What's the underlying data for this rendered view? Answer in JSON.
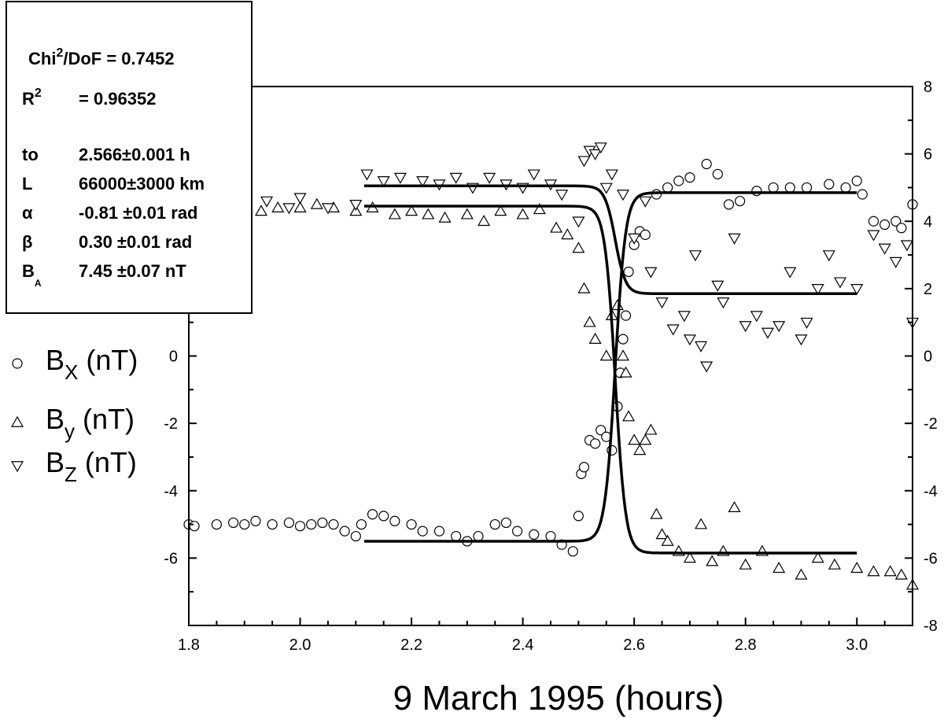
{
  "chart_data": {
    "type": "scatter",
    "xlabel": "9 March 1995 (hours)",
    "xlim": [
      1.8,
      3.1
    ],
    "ylim": [
      -8,
      8
    ],
    "x_ticks": [
      "1.8",
      "2.0",
      "2.2",
      "2.4",
      "2.6",
      "2.8",
      "3.0"
    ],
    "y_ticks": [
      "-8",
      "-6",
      "-4",
      "-2",
      "0",
      "2",
      "4",
      "6",
      "8"
    ],
    "legend": [
      {
        "symbol": "○",
        "base": "B",
        "sub": "X",
        "unit": "(nT)",
        "marker": "circle"
      },
      {
        "symbol": "△",
        "base": "B",
        "sub": "y",
        "unit": "(nT)",
        "marker": "triangle-up"
      },
      {
        "symbol": "▽",
        "base": "B",
        "sub": "Z",
        "unit": "(nT)",
        "marker": "triangle-down"
      }
    ],
    "stats": {
      "chi_label": "Chi",
      "chi_sup": "2",
      "chi_rest": "/DoF  = 0.7452",
      "r_label": "R",
      "r_sup": "2",
      "r_rest": "=  0.96352",
      "params": [
        {
          "name": "to",
          "value": "2.566±0.001 h"
        },
        {
          "name": "L",
          "value": "66000±3000  km"
        },
        {
          "name": "α",
          "value": "-0.81 ±0.01 rad"
        },
        {
          "name": "β",
          "value": "0.30  ±0.01 rad"
        },
        {
          "name": "B",
          "name_sub": "A",
          "value": "7.45  ±0.07 nT"
        }
      ]
    },
    "fit": {
      "t0": 2.566,
      "x_range": [
        2.115,
        3.0
      ],
      "width": 0.0185
    },
    "series": [
      {
        "name": "Bx",
        "marker": "circle",
        "points": [
          [
            1.8,
            -5.0
          ],
          [
            1.81,
            -5.05
          ],
          [
            1.85,
            -5.0
          ],
          [
            1.88,
            -4.95
          ],
          [
            1.9,
            -5.0
          ],
          [
            1.92,
            -4.9
          ],
          [
            1.95,
            -5.0
          ],
          [
            1.98,
            -4.95
          ],
          [
            2.0,
            -5.05
          ],
          [
            2.02,
            -5.0
          ],
          [
            2.04,
            -4.95
          ],
          [
            2.06,
            -5.0
          ],
          [
            2.08,
            -5.2
          ],
          [
            2.1,
            -5.35
          ],
          [
            2.11,
            -5.0
          ],
          [
            2.13,
            -4.7
          ],
          [
            2.15,
            -4.75
          ],
          [
            2.17,
            -4.9
          ],
          [
            2.2,
            -5.0
          ],
          [
            2.22,
            -5.2
          ],
          [
            2.25,
            -5.2
          ],
          [
            2.28,
            -5.35
          ],
          [
            2.3,
            -5.5
          ],
          [
            2.32,
            -5.35
          ],
          [
            2.35,
            -5.0
          ],
          [
            2.37,
            -4.95
          ],
          [
            2.39,
            -5.2
          ],
          [
            2.42,
            -5.3
          ],
          [
            2.45,
            -5.35
          ],
          [
            2.47,
            -5.6
          ],
          [
            2.49,
            -5.8
          ],
          [
            2.5,
            -4.75
          ],
          [
            2.505,
            -3.5
          ],
          [
            2.51,
            -3.3
          ],
          [
            2.52,
            -2.5
          ],
          [
            2.53,
            -2.6
          ],
          [
            2.54,
            -2.2
          ],
          [
            2.55,
            -2.4
          ],
          [
            2.56,
            -2.8
          ],
          [
            2.57,
            -1.5
          ],
          [
            2.575,
            -0.5
          ],
          [
            2.58,
            0.5
          ],
          [
            2.585,
            1.2
          ],
          [
            2.59,
            2.5
          ],
          [
            2.6,
            3.3
          ],
          [
            2.61,
            3.7
          ],
          [
            2.62,
            3.6
          ],
          [
            2.64,
            4.8
          ],
          [
            2.66,
            5.0
          ],
          [
            2.68,
            5.2
          ],
          [
            2.7,
            5.3
          ],
          [
            2.73,
            5.7
          ],
          [
            2.75,
            5.4
          ],
          [
            2.77,
            4.5
          ],
          [
            2.79,
            4.6
          ],
          [
            2.82,
            4.9
          ],
          [
            2.85,
            5.0
          ],
          [
            2.88,
            5.0
          ],
          [
            2.91,
            5.0
          ],
          [
            2.95,
            5.1
          ],
          [
            2.98,
            5.0
          ],
          [
            3.0,
            5.2
          ],
          [
            3.01,
            4.8
          ],
          [
            3.03,
            4.0
          ],
          [
            3.05,
            3.9
          ],
          [
            3.07,
            4.0
          ],
          [
            3.08,
            3.8
          ],
          [
            3.1,
            4.5
          ]
        ]
      },
      {
        "name": "By",
        "marker": "triangle-up",
        "points": [
          [
            1.82,
            4.3
          ],
          [
            1.85,
            4.35
          ],
          [
            1.88,
            4.4
          ],
          [
            1.9,
            4.3
          ],
          [
            1.93,
            4.3
          ],
          [
            1.96,
            4.4
          ],
          [
            2.0,
            4.4
          ],
          [
            2.03,
            4.5
          ],
          [
            2.06,
            4.4
          ],
          [
            2.1,
            4.3
          ],
          [
            2.13,
            4.4
          ],
          [
            2.17,
            4.2
          ],
          [
            2.2,
            4.3
          ],
          [
            2.23,
            4.2
          ],
          [
            2.26,
            4.1
          ],
          [
            2.3,
            4.2
          ],
          [
            2.33,
            4.0
          ],
          [
            2.36,
            4.3
          ],
          [
            2.4,
            4.2
          ],
          [
            2.43,
            4.35
          ],
          [
            2.46,
            3.8
          ],
          [
            2.48,
            3.6
          ],
          [
            2.5,
            3.2
          ],
          [
            2.51,
            2.0
          ],
          [
            2.52,
            1.0
          ],
          [
            2.53,
            0.5
          ],
          [
            2.55,
            0.0
          ],
          [
            2.56,
            1.2
          ],
          [
            2.57,
            1.5
          ],
          [
            2.58,
            0.0
          ],
          [
            2.585,
            -0.5
          ],
          [
            2.59,
            -1.8
          ],
          [
            2.6,
            -2.5
          ],
          [
            2.61,
            -2.8
          ],
          [
            2.62,
            -2.5
          ],
          [
            2.63,
            -2.2
          ],
          [
            2.64,
            -4.7
          ],
          [
            2.65,
            -5.3
          ],
          [
            2.66,
            -5.5
          ],
          [
            2.68,
            -5.8
          ],
          [
            2.7,
            -6.0
          ],
          [
            2.72,
            -5.0
          ],
          [
            2.74,
            -6.1
          ],
          [
            2.76,
            -5.8
          ],
          [
            2.78,
            -4.5
          ],
          [
            2.8,
            -6.2
          ],
          [
            2.83,
            -5.8
          ],
          [
            2.86,
            -6.3
          ],
          [
            2.9,
            -6.5
          ],
          [
            2.93,
            -6.0
          ],
          [
            2.96,
            -6.2
          ],
          [
            3.0,
            -6.3
          ],
          [
            3.03,
            -6.4
          ],
          [
            3.06,
            -6.4
          ],
          [
            3.08,
            -6.5
          ],
          [
            3.1,
            -6.8
          ]
        ]
      },
      {
        "name": "Bz",
        "marker": "triangle-down",
        "points": [
          [
            1.84,
            4.5
          ],
          [
            1.87,
            4.6
          ],
          [
            1.9,
            4.5
          ],
          [
            1.94,
            4.6
          ],
          [
            1.98,
            4.4
          ],
          [
            2.0,
            4.7
          ],
          [
            2.05,
            4.4
          ],
          [
            2.1,
            4.5
          ],
          [
            2.12,
            5.4
          ],
          [
            2.15,
            5.2
          ],
          [
            2.18,
            5.3
          ],
          [
            2.22,
            5.2
          ],
          [
            2.25,
            5.1
          ],
          [
            2.28,
            5.3
          ],
          [
            2.31,
            5.0
          ],
          [
            2.34,
            5.3
          ],
          [
            2.37,
            5.1
          ],
          [
            2.4,
            5.0
          ],
          [
            2.42,
            5.4
          ],
          [
            2.45,
            5.1
          ],
          [
            2.47,
            4.8
          ],
          [
            2.5,
            4.0
          ],
          [
            2.51,
            5.8
          ],
          [
            2.52,
            6.1
          ],
          [
            2.53,
            6.0
          ],
          [
            2.54,
            6.2
          ],
          [
            2.55,
            5.0
          ],
          [
            2.56,
            5.4
          ],
          [
            2.58,
            4.8
          ],
          [
            2.6,
            3.5
          ],
          [
            2.62,
            4.6
          ],
          [
            2.63,
            2.5
          ],
          [
            2.65,
            1.6
          ],
          [
            2.67,
            0.8
          ],
          [
            2.69,
            1.2
          ],
          [
            2.7,
            0.5
          ],
          [
            2.71,
            3.0
          ],
          [
            2.72,
            0.3
          ],
          [
            2.73,
            -0.3
          ],
          [
            2.75,
            2.1
          ],
          [
            2.76,
            1.6
          ],
          [
            2.78,
            3.5
          ],
          [
            2.8,
            0.9
          ],
          [
            2.82,
            1.2
          ],
          [
            2.84,
            0.7
          ],
          [
            2.86,
            0.9
          ],
          [
            2.88,
            2.5
          ],
          [
            2.9,
            0.5
          ],
          [
            2.91,
            1.0
          ],
          [
            2.93,
            2.0
          ],
          [
            2.95,
            3.0
          ],
          [
            2.97,
            2.2
          ],
          [
            3.0,
            2.0
          ],
          [
            3.03,
            3.6
          ],
          [
            3.05,
            3.2
          ],
          [
            3.07,
            2.8
          ],
          [
            3.09,
            3.3
          ],
          [
            3.1,
            1.0
          ]
        ]
      }
    ]
  }
}
